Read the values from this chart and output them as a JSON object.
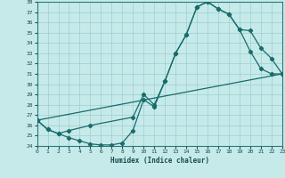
{
  "xlabel": "Humidex (Indice chaleur)",
  "bg_color": "#c6eaea",
  "grid_color": "#9ecece",
  "line_color": "#1a6b6b",
  "xmin": 0,
  "xmax": 23,
  "ymin": 24,
  "ymax": 38,
  "curve1_x": [
    0,
    1,
    2,
    3,
    4,
    5,
    6,
    7,
    8,
    9,
    10,
    11,
    12,
    13,
    14,
    15,
    16,
    17,
    18,
    19,
    20,
    21,
    22,
    23
  ],
  "curve1_y": [
    26.5,
    25.6,
    25.2,
    24.8,
    24.5,
    24.2,
    24.1,
    24.1,
    24.3,
    25.5,
    28.5,
    27.8,
    30.3,
    33.0,
    34.8,
    37.5,
    38.0,
    37.3,
    36.8,
    35.3,
    33.2,
    31.5,
    31.0,
    31.0
  ],
  "curve2_x": [
    0,
    1,
    2,
    3,
    5,
    9,
    10,
    11,
    12,
    13,
    14,
    15,
    16,
    17,
    18,
    19,
    20,
    21,
    22,
    23
  ],
  "curve2_y": [
    26.5,
    25.6,
    25.2,
    25.5,
    26.0,
    26.8,
    29.0,
    28.0,
    30.3,
    33.0,
    34.8,
    37.5,
    38.0,
    37.3,
    36.8,
    35.3,
    35.2,
    33.5,
    32.5,
    31.0
  ],
  "curve3_x": [
    0,
    23
  ],
  "curve3_y": [
    26.5,
    31.0
  ],
  "xticks": [
    0,
    1,
    2,
    3,
    4,
    5,
    6,
    7,
    8,
    9,
    10,
    11,
    12,
    13,
    14,
    15,
    16,
    17,
    18,
    19,
    20,
    21,
    22,
    23
  ],
  "yticks": [
    24,
    25,
    26,
    27,
    28,
    29,
    30,
    31,
    32,
    33,
    34,
    35,
    36,
    37,
    38
  ]
}
